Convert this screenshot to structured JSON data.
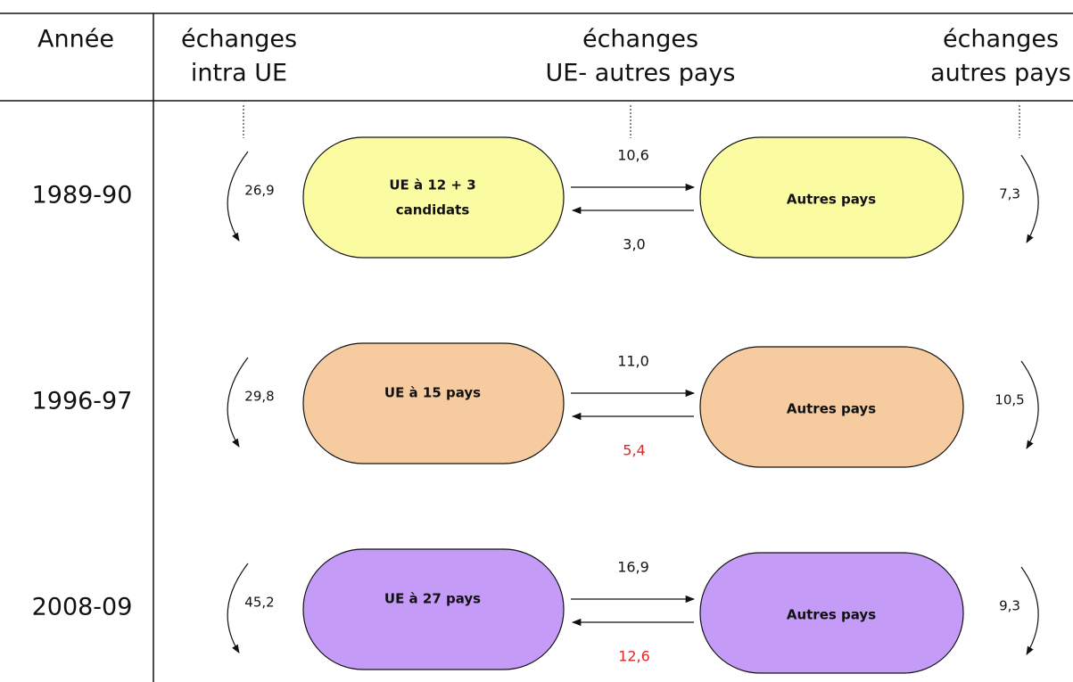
{
  "header": {
    "year": "Année",
    "columns": [
      [
        "échanges",
        "intra UE"
      ],
      [
        "échanges",
        "UE- autres pays"
      ],
      [
        "échanges",
        "autres pays"
      ]
    ]
  },
  "rows": [
    {
      "year": "1989-90",
      "fill": "#fbfba2",
      "eu": [
        "UE à 12 + 3",
        "candidats"
      ],
      "other": "Autres pays",
      "intra": "26,9",
      "out": "10,6",
      "in": "3,0",
      "in_color": "#111111",
      "rest": "7,3"
    },
    {
      "year": "1996-97",
      "fill": "#f7cba0",
      "eu": [
        "UE à 15 pays"
      ],
      "other": "Autres pays",
      "intra": "29,8",
      "out": "11,0",
      "in": "5,4",
      "in_color": "#e02626",
      "rest": "10,5"
    },
    {
      "year": "2008-09",
      "fill": "#c49bf7",
      "eu": [
        "UE à 27 pays"
      ],
      "other": "Autres pays",
      "intra": "45,2",
      "out": "16,9",
      "in": "12,6",
      "in_color": "#e02626",
      "rest": "9,3"
    }
  ]
}
